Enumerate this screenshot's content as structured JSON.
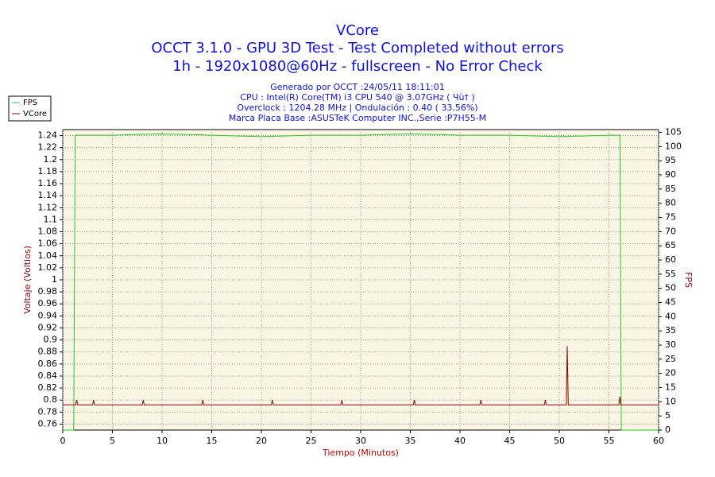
{
  "chart_data": {
    "type": "line",
    "title": "VCore",
    "subtitle": [
      "OCCT 3.1.0 - GPU 3D Test - Test Completed without errors",
      "1h - 1920x1080@60Hz - fullscreen - No Error Check"
    ],
    "info": [
      "Generado por OCCT :24/05/11 18:11:01",
      "CPU : Intel(R) Core(TM) i3 CPU 540 @ 3.07GHz ( Чù† )",
      "Overclock : 1204.28 MHz | Ondulación : 0.40 ( 33.56%)",
      "Marca Placa Base :ASUSTeK Computer INC.,Serie :P7H55-M"
    ],
    "xlabel": "Tiempo (Minutos)",
    "ylabel": "Voltaje (Voltios)",
    "y2label": "FPS",
    "xlim": [
      0,
      60
    ],
    "xticks": [
      0,
      5,
      10,
      15,
      20,
      25,
      30,
      35,
      40,
      45,
      50,
      55,
      60
    ],
    "ylim": [
      0.75,
      1.25
    ],
    "yticks": [
      0.76,
      0.78,
      0.8,
      0.82,
      0.84,
      0.86,
      0.88,
      0.9,
      0.92,
      0.94,
      0.96,
      0.98,
      1,
      1.02,
      1.04,
      1.06,
      1.08,
      1.1,
      1.12,
      1.14,
      1.16,
      1.18,
      1.2,
      1.22,
      1.24
    ],
    "y2lim": [
      0,
      106
    ],
    "y2ticks": [
      0,
      5,
      10,
      15,
      20,
      25,
      30,
      35,
      40,
      45,
      50,
      55,
      60,
      65,
      70,
      75,
      80,
      85,
      90,
      95,
      100,
      105
    ],
    "grid": true,
    "legend": "top-left",
    "series": [
      {
        "name": "FPS",
        "color": "#22cc22",
        "axis": "y2",
        "x": [
          0,
          1.1,
          1.25,
          5,
          10,
          15,
          20,
          25,
          30,
          35,
          40,
          45,
          50,
          55,
          56.1,
          56.25,
          60
        ],
        "values": [
          0,
          0,
          104,
          104,
          104.5,
          104,
          103.5,
          104,
          104,
          104.5,
          104,
          104,
          103.5,
          104,
          104,
          0,
          0
        ]
      },
      {
        "name": "VCore",
        "color": "#8b0000",
        "axis": "y",
        "x": [
          0,
          1.3,
          1.4,
          1.5,
          3,
          3.1,
          3.2,
          8,
          8.1,
          8.2,
          14,
          14.1,
          14.2,
          21,
          21.1,
          21.2,
          28,
          28.1,
          28.2,
          35.3,
          35.4,
          35.5,
          42,
          42.1,
          42.2,
          48.5,
          48.6,
          48.7,
          50.7,
          50.8,
          50.9,
          51,
          56.0,
          56.1,
          56.2,
          60
        ],
        "values": [
          0.792,
          0.792,
          0.8,
          0.792,
          0.792,
          0.8,
          0.792,
          0.792,
          0.8,
          0.792,
          0.792,
          0.8,
          0.792,
          0.792,
          0.8,
          0.792,
          0.792,
          0.8,
          0.792,
          0.792,
          0.8,
          0.792,
          0.792,
          0.8,
          0.792,
          0.792,
          0.8,
          0.792,
          0.792,
          0.89,
          0.792,
          0.792,
          0.792,
          0.806,
          0.792,
          0.792
        ]
      }
    ]
  }
}
